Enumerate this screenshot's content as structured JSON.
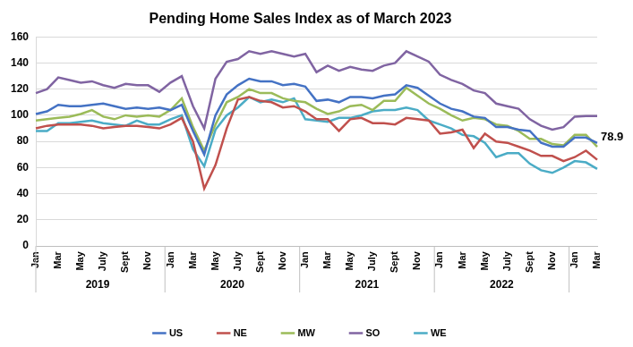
{
  "chart_data": {
    "type": "line",
    "title": "Pending Home Sales Index as of March 2023",
    "categories": [
      "Jan",
      null,
      "Mar",
      null,
      "May",
      null,
      "July",
      null,
      "Sept",
      null,
      "Nov",
      null,
      "Jan",
      null,
      "Mar",
      null,
      "May",
      null,
      "July",
      null,
      "Sept",
      null,
      "Nov",
      null,
      "Jan",
      null,
      "Mar",
      null,
      "May",
      null,
      "July",
      null,
      "Sept",
      null,
      "Nov",
      null,
      "Jan",
      null,
      "Mar",
      null,
      "May",
      null,
      "July",
      null,
      "Sept",
      null,
      "Nov",
      null,
      "Jan",
      null,
      "Mar"
    ],
    "x_groups": [
      {
        "label": "2019",
        "span": 12
      },
      {
        "label": "2020",
        "span": 12
      },
      {
        "label": "2021",
        "span": 12
      },
      {
        "label": "2022",
        "span": 12
      }
    ],
    "series": [
      {
        "name": "US",
        "color": "#4472c4",
        "values": [
          101,
          103,
          108,
          107,
          107,
          108,
          109,
          107,
          105,
          106,
          105,
          106,
          104,
          108,
          88,
          70,
          100,
          116,
          123,
          128,
          126,
          126,
          123,
          124,
          122,
          111,
          112,
          110,
          114,
          114,
          113,
          115,
          116,
          123,
          121,
          115,
          109,
          105,
          103,
          99,
          98,
          91,
          91,
          89,
          88,
          79,
          76,
          76,
          83,
          83,
          78.9
        ]
      },
      {
        "name": "NE",
        "color": "#c0504d",
        "values": [
          90,
          92,
          93,
          93,
          93,
          92,
          90,
          91,
          92,
          92,
          91,
          90,
          93,
          98,
          80,
          44,
          62,
          90,
          112,
          114,
          111,
          110,
          106,
          107,
          103,
          97,
          97,
          88,
          97,
          98,
          94,
          94,
          93,
          98,
          97,
          96,
          86,
          87,
          89,
          75,
          86,
          80,
          79,
          76,
          73,
          69,
          69,
          65,
          68,
          73,
          66
        ]
      },
      {
        "name": "MW",
        "color": "#9bbb59",
        "values": [
          96,
          97,
          98,
          99,
          101,
          104,
          99,
          97,
          100,
          99,
          100,
          99,
          104,
          113,
          91,
          73,
          93,
          110,
          114,
          120,
          117,
          117,
          113,
          111,
          110,
          105,
          101,
          103,
          107,
          108,
          104,
          111,
          111,
          121,
          115,
          109,
          105,
          100,
          96,
          98,
          97,
          93,
          92,
          88,
          82,
          82,
          78,
          77,
          85,
          85,
          76
        ]
      },
      {
        "name": "SO",
        "color": "#8064a2",
        "values": [
          117,
          120,
          129,
          127,
          125,
          126,
          123,
          121,
          124,
          123,
          123,
          118,
          125,
          130,
          107,
          90,
          128,
          141,
          143,
          149,
          147,
          149,
          147,
          145,
          147,
          133,
          138,
          134,
          137,
          135,
          134,
          138,
          140,
          149,
          145,
          141,
          131,
          127,
          124,
          119,
          117,
          109,
          107,
          105,
          97,
          92,
          89,
          91,
          99,
          99.5,
          99.5
        ]
      },
      {
        "name": "WE",
        "color": "#4bacc6",
        "values": [
          88,
          88,
          94,
          94,
          95,
          96,
          94,
          93,
          92,
          96,
          93,
          93,
          97,
          100,
          74,
          61,
          89,
          100,
          106,
          114,
          110,
          112,
          110,
          113,
          97,
          96,
          95,
          98,
          98,
          100,
          103,
          104,
          104,
          106,
          104,
          96,
          93,
          90,
          85,
          84,
          79,
          68,
          71,
          71,
          63,
          58,
          56,
          60,
          65,
          64,
          59
        ]
      }
    ],
    "ylim": [
      0,
      160
    ],
    "yticks": [
      0,
      20,
      40,
      60,
      80,
      100,
      120,
      140,
      160
    ],
    "grid": true,
    "legend": "bottom",
    "annotations": [
      {
        "text": "78.9",
        "series": "US",
        "category_index": 50
      }
    ]
  }
}
